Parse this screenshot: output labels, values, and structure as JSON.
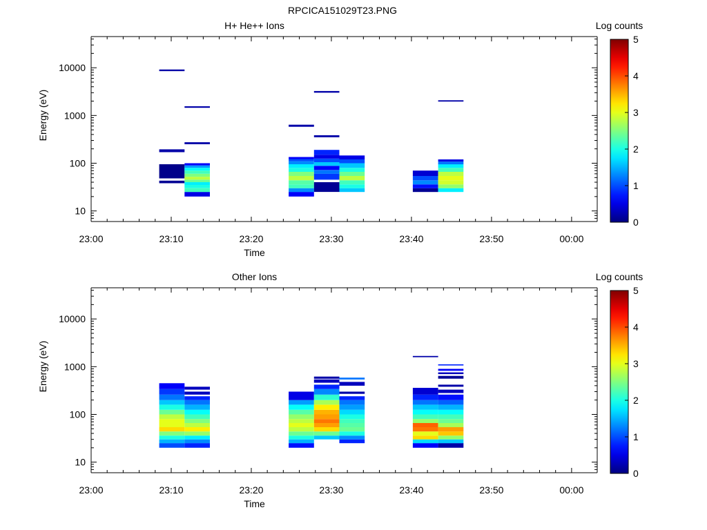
{
  "figure_title": "RPCICA151029T23.PNG",
  "colors": {
    "axis": "#000000",
    "background": "#ffffff",
    "colormap": "jet"
  },
  "chart_data": [
    {
      "type": "heatmap",
      "title": "H+ He++ Ions",
      "xlabel": "Time",
      "ylabel": "Energy (eV)",
      "x_ticks": [
        "23:00",
        "23:10",
        "23:20",
        "23:30",
        "23:40",
        "23:50",
        "00:00"
      ],
      "y_ticks": [
        "10",
        "100",
        "1000",
        "10000"
      ],
      "y_scale": "log",
      "ylim": [
        6,
        45000
      ],
      "colorbar": {
        "label": "Log counts",
        "ticks": [
          "0",
          "1",
          "2",
          "3",
          "4",
          "5"
        ],
        "range": [
          0,
          5
        ]
      },
      "columns": [
        {
          "t": [
            "23:08:30",
            "23:11:40"
          ],
          "cells": [
            [
              38,
              43,
              0.1
            ],
            [
              48,
              95,
              0.05
            ],
            [
              170,
              195,
              0.2
            ],
            [
              8500,
              9200,
              0.2
            ]
          ]
        },
        {
          "t": [
            "23:11:40",
            "23:14:50"
          ],
          "cells": [
            [
              20,
              25,
              0.5
            ],
            [
              25,
              30,
              2.2
            ],
            [
              30,
              35,
              2.0
            ],
            [
              35,
              40,
              1.8
            ],
            [
              40,
              45,
              2.4
            ],
            [
              45,
              52,
              2.8
            ],
            [
              52,
              60,
              2.5
            ],
            [
              60,
              70,
              2.2
            ],
            [
              70,
              80,
              1.9
            ],
            [
              80,
              90,
              1.4
            ],
            [
              90,
              100,
              0.6
            ],
            [
              250,
              275,
              0.2
            ],
            [
              1450,
              1560,
              0.2
            ]
          ]
        },
        {
          "t": [
            "23:24:40",
            "23:27:50"
          ],
          "cells": [
            [
              20,
              25,
              0.6
            ],
            [
              25,
              30,
              1.3
            ],
            [
              30,
              36,
              2.2
            ],
            [
              36,
              44,
              2.3
            ],
            [
              44,
              54,
              2.8
            ],
            [
              54,
              66,
              2.5
            ],
            [
              66,
              80,
              2.0
            ],
            [
              80,
              95,
              1.8
            ],
            [
              95,
              110,
              1.3
            ],
            [
              110,
              122,
              1.0
            ],
            [
              122,
              135,
              0.6
            ],
            [
              580,
              640,
              0.2
            ]
          ]
        },
        {
          "t": [
            "23:27:50",
            "23:31:00"
          ],
          "cells": [
            [
              25,
              40,
              0.1
            ],
            [
              45,
              60,
              0.9
            ],
            [
              60,
              72,
              1.2
            ],
            [
              72,
              88,
              0.6
            ],
            [
              88,
              105,
              1.6
            ],
            [
              105,
              125,
              1.0
            ],
            [
              125,
              150,
              0.5
            ],
            [
              150,
              190,
              0.8
            ],
            [
              350,
              385,
              0.2
            ],
            [
              3000,
              3250,
              0.2
            ]
          ]
        },
        {
          "t": [
            "23:31:00",
            "23:34:10"
          ],
          "cells": [
            [
              25,
              30,
              1.6
            ],
            [
              30,
              36,
              2.0
            ],
            [
              36,
              44,
              2.2
            ],
            [
              44,
              54,
              2.8
            ],
            [
              54,
              66,
              2.4
            ],
            [
              66,
              80,
              2.0
            ],
            [
              80,
              100,
              1.6
            ],
            [
              100,
              120,
              1.0
            ],
            [
              120,
              145,
              0.5
            ]
          ]
        },
        {
          "t": [
            "23:40:10",
            "23:43:20"
          ],
          "cells": [
            [
              25,
              30,
              0.1
            ],
            [
              30,
              36,
              0.7
            ],
            [
              36,
              44,
              1.3
            ],
            [
              44,
              54,
              1.0
            ],
            [
              54,
              70,
              0.4
            ]
          ]
        },
        {
          "t": [
            "23:43:20",
            "23:46:30"
          ],
          "cells": [
            [
              25,
              30,
              1.8
            ],
            [
              30,
              36,
              2.6
            ],
            [
              36,
              44,
              2.9
            ],
            [
              44,
              54,
              3.0
            ],
            [
              54,
              66,
              2.8
            ],
            [
              66,
              80,
              2.2
            ],
            [
              80,
              95,
              1.8
            ],
            [
              95,
              108,
              1.2
            ],
            [
              108,
              120,
              0.5
            ],
            [
              1950,
              2080,
              0.2
            ]
          ]
        }
      ]
    },
    {
      "type": "heatmap",
      "title": "Other Ions",
      "xlabel": "Time",
      "ylabel": "Energy (eV)",
      "x_ticks": [
        "23:00",
        "23:10",
        "23:20",
        "23:30",
        "23:40",
        "23:50",
        "00:00"
      ],
      "y_ticks": [
        "10",
        "100",
        "1000",
        "10000"
      ],
      "y_scale": "log",
      "ylim": [
        6,
        45000
      ],
      "colorbar": {
        "label": "Log counts",
        "ticks": [
          "0",
          "1",
          "2",
          "3",
          "4",
          "5"
        ],
        "range": [
          0,
          5
        ]
      },
      "columns": [
        {
          "t": [
            "23:08:30",
            "23:11:40"
          ],
          "cells": [
            [
              20,
              25,
              1.0
            ],
            [
              25,
              30,
              1.5
            ],
            [
              30,
              36,
              2.0
            ],
            [
              36,
              44,
              2.5
            ],
            [
              44,
              54,
              3.3
            ],
            [
              54,
              66,
              3.0
            ],
            [
              66,
              80,
              3.0
            ],
            [
              80,
              100,
              2.8
            ],
            [
              100,
              125,
              2.4
            ],
            [
              125,
              160,
              2.0
            ],
            [
              160,
              200,
              1.6
            ],
            [
              200,
              260,
              1.2
            ],
            [
              260,
              340,
              0.9
            ],
            [
              340,
              450,
              0.6
            ]
          ]
        },
        {
          "t": [
            "23:11:40",
            "23:14:50"
          ],
          "cells": [
            [
              20,
              25,
              0.8
            ],
            [
              25,
              30,
              1.3
            ],
            [
              30,
              36,
              1.8
            ],
            [
              36,
              44,
              2.6
            ],
            [
              44,
              54,
              3.2
            ],
            [
              54,
              66,
              2.8
            ],
            [
              66,
              80,
              2.5
            ],
            [
              80,
              100,
              2.2
            ],
            [
              100,
              125,
              1.9
            ],
            [
              125,
              160,
              1.5
            ],
            [
              160,
              200,
              1.2
            ],
            [
              200,
              240,
              0.8
            ],
            [
              260,
              300,
              0.3
            ],
            [
              330,
              380,
              0.3
            ]
          ]
        },
        {
          "t": [
            "23:24:40",
            "23:27:50"
          ],
          "cells": [
            [
              20,
              25,
              0.7
            ],
            [
              25,
              30,
              1.5
            ],
            [
              30,
              36,
              2.0
            ],
            [
              36,
              44,
              2.4
            ],
            [
              44,
              54,
              2.8
            ],
            [
              54,
              66,
              3.0
            ],
            [
              66,
              80,
              2.8
            ],
            [
              80,
              100,
              2.6
            ],
            [
              100,
              125,
              2.3
            ],
            [
              125,
              160,
              1.9
            ],
            [
              160,
              200,
              1.4
            ],
            [
              200,
              300,
              0.5
            ]
          ]
        },
        {
          "t": [
            "23:27:50",
            "23:31:00"
          ],
          "cells": [
            [
              30,
              36,
              1.6
            ],
            [
              36,
              44,
              2.4
            ],
            [
              44,
              54,
              3.3
            ],
            [
              54,
              66,
              3.6
            ],
            [
              66,
              80,
              3.8
            ],
            [
              80,
              100,
              3.6
            ],
            [
              100,
              125,
              3.5
            ],
            [
              125,
              160,
              3.2
            ],
            [
              160,
              200,
              2.7
            ],
            [
              200,
              260,
              2.1
            ],
            [
              260,
              340,
              1.3
            ],
            [
              340,
              420,
              0.8
            ],
            [
              460,
              540,
              0.3
            ],
            [
              560,
              620,
              0.2
            ]
          ]
        },
        {
          "t": [
            "23:31:00",
            "23:34:10"
          ],
          "cells": [
            [
              25,
              30,
              0.8
            ],
            [
              30,
              36,
              1.3
            ],
            [
              36,
              44,
              2.0
            ],
            [
              44,
              54,
              2.4
            ],
            [
              54,
              66,
              2.3
            ],
            [
              66,
              80,
              2.2
            ],
            [
              80,
              100,
              2.0
            ],
            [
              100,
              125,
              1.7
            ],
            [
              125,
              160,
              1.4
            ],
            [
              160,
              200,
              1.2
            ],
            [
              200,
              240,
              0.8
            ],
            [
              270,
              300,
              0.2
            ],
            [
              400,
              480,
              0.3
            ],
            [
              540,
              590,
              1.2
            ]
          ]
        },
        {
          "t": [
            "23:40:10",
            "23:43:20"
          ],
          "cells": [
            [
              20,
              25,
              0.6
            ],
            [
              25,
              30,
              1.7
            ],
            [
              30,
              36,
              3.3
            ],
            [
              36,
              44,
              3.0
            ],
            [
              44,
              54,
              3.8
            ],
            [
              54,
              66,
              3.9
            ],
            [
              66,
              80,
              2.6
            ],
            [
              80,
              100,
              2.2
            ],
            [
              100,
              125,
              1.9
            ],
            [
              125,
              160,
              1.6
            ],
            [
              160,
              200,
              1.2
            ],
            [
              200,
              260,
              0.8
            ],
            [
              260,
              360,
              0.4
            ],
            [
              1580,
              1680,
              0.2
            ]
          ]
        },
        {
          "t": [
            "23:43:20",
            "23:46:30"
          ],
          "cells": [
            [
              20,
              25,
              0.2
            ],
            [
              25,
              30,
              1.6
            ],
            [
              30,
              36,
              2.6
            ],
            [
              36,
              44,
              3.4
            ],
            [
              44,
              54,
              3.6
            ],
            [
              54,
              66,
              2.7
            ],
            [
              66,
              80,
              2.4
            ],
            [
              80,
              100,
              2.2
            ],
            [
              100,
              125,
              1.9
            ],
            [
              125,
              160,
              1.5
            ],
            [
              160,
              200,
              1.1
            ],
            [
              200,
              260,
              0.7
            ],
            [
              280,
              330,
              0.3
            ],
            [
              380,
              420,
              0.2
            ],
            [
              560,
              640,
              0.1
            ],
            [
              700,
              760,
              0.3
            ],
            [
              820,
              900,
              0.6
            ],
            [
              1060,
              1120,
              0.8
            ]
          ]
        }
      ]
    }
  ]
}
